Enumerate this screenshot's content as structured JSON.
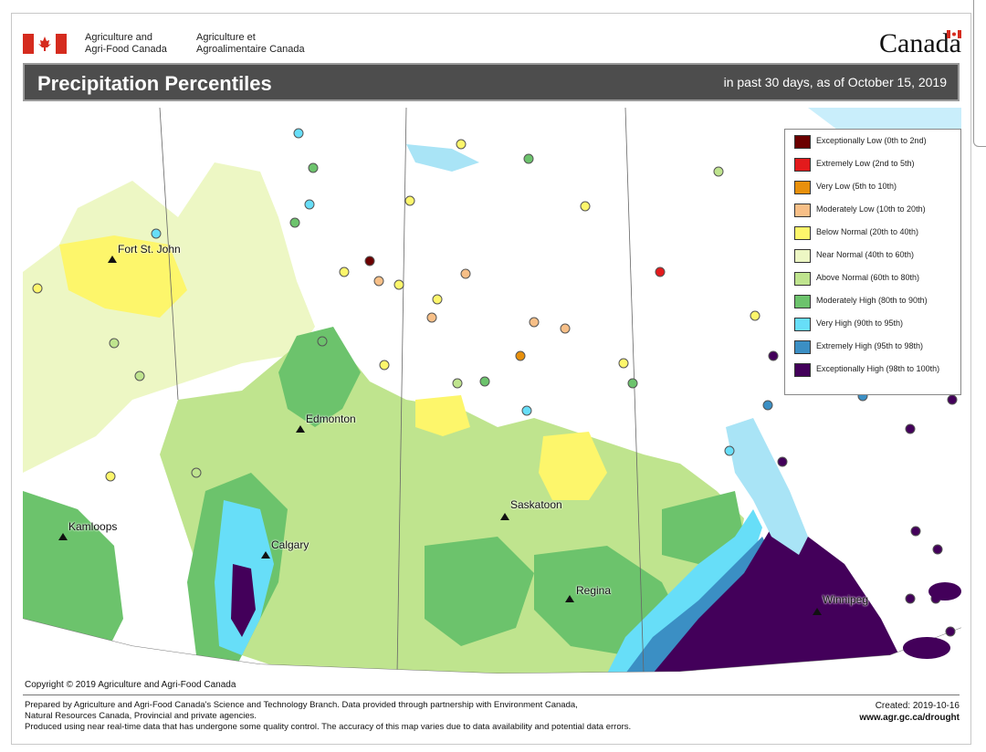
{
  "header": {
    "dept_en_line1": "Agriculture and",
    "dept_en_line2": "Agri-Food Canada",
    "dept_fr_line1": "Agriculture et",
    "dept_fr_line2": "Agroalimentaire Canada",
    "wordmark": "Canada",
    "flag_colors": {
      "red": "#d52b1e",
      "white": "#ffffff"
    }
  },
  "title_bar": {
    "title": "Precipitation Percentiles",
    "subtitle": "in past 30 days, as of October 15, 2019"
  },
  "legend": {
    "items": [
      {
        "label": "Exceptionally Low (0th to 2nd)",
        "color": "#6b0000"
      },
      {
        "label": "Extremely Low (2nd to 5th)",
        "color": "#e31a1c"
      },
      {
        "label": "Very Low (5th to 10th)",
        "color": "#e8900c"
      },
      {
        "label": "Moderately Low (10th to 20th)",
        "color": "#f7bf87"
      },
      {
        "label": "Below Normal (20th to 40th)",
        "color": "#fdf66b"
      },
      {
        "label": "Near Normal (40th to 60th)",
        "color": "#edf7c4"
      },
      {
        "label": "Above Normal (60th to 80th)",
        "color": "#bfe48e"
      },
      {
        "label": "Moderately High (80th to 90th)",
        "color": "#6cc36c"
      },
      {
        "label": "Very High (90th to 95th)",
        "color": "#67def8"
      },
      {
        "label": "Extremely High (95th to 98th)",
        "color": "#3b8fc4"
      },
      {
        "label": "Exceptionally High (98th to 100th)",
        "color": "#43005a"
      }
    ]
  },
  "cities": [
    {
      "name": "Fort St. John"
    },
    {
      "name": "Edmonton"
    },
    {
      "name": "Kamloops"
    },
    {
      "name": "Calgary"
    },
    {
      "name": "Saskatoon"
    },
    {
      "name": "Regina"
    },
    {
      "name": "Winnipeg"
    }
  ],
  "copyright": "Copyright © 2019 Agriculture and Agri-Food Canada",
  "footer": {
    "line1": "Prepared by Agriculture and Agri-Food Canada's Science and Technology Branch. Data provided through partnership with Environment Canada,",
    "line2": "Natural Resources Canada, Provincial and private agencies.",
    "line3": "Produced using near real-time data that has undergone some quality control. The accuracy of this map varies due to data availability and potential data errors.",
    "created": "Created: 2019-10-16",
    "url": "www.agr.gc.ca/drought"
  }
}
